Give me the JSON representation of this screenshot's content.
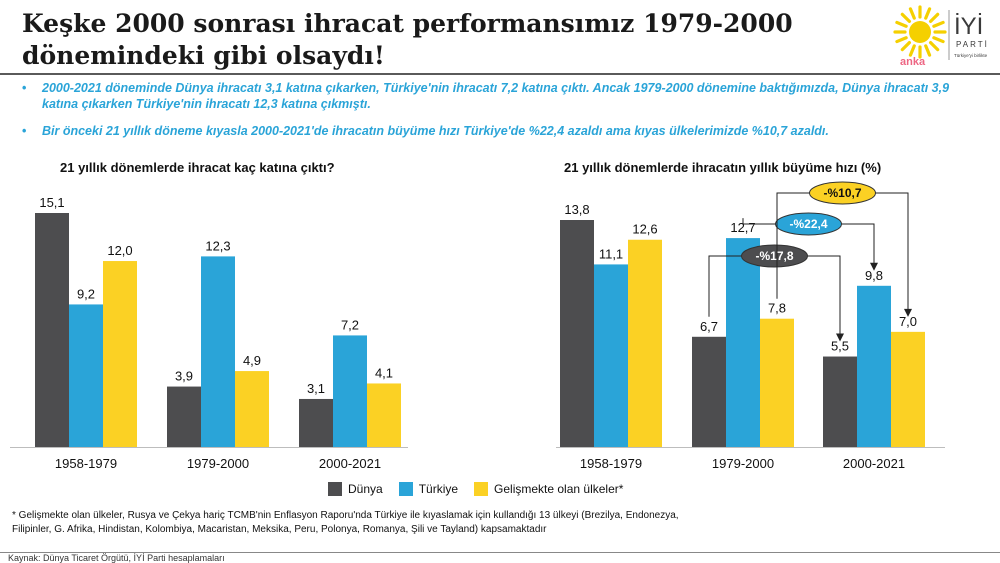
{
  "header": {
    "title": "Keşke 2000 sonrası ihracat performansımız 1979-2000 dönemindeki gibi olsaydı!"
  },
  "logo": {
    "party_main": "İYİ",
    "party_sub": "PARTİ",
    "tagline": "Türkiye'yi birlikte",
    "watermark": "anka",
    "sun_color": "#f5d000",
    "watermark_color": "#e8335a"
  },
  "bullets": [
    "2000-2021 döneminde Dünya ihracatı 3,1 katına çıkarken, Türkiye'nin ihracatı 7,2 katına çıktı. Ancak 1979-2000 dönemine baktığımızda, Dünya ihracatı 3,9 katına çıkarken Türkiye'nin ihracatı 12,3 katına çıkmıştı.",
    "Bir önceki 21 yıllık döneme kıyasla 2000-2021'de ihracatın büyüme hızı Türkiye'de %22,4 azaldı ama kıyas ülkelerimizde %10,7 azaldı."
  ],
  "colors": {
    "Dünya": "#4d4d4f",
    "Türkiye": "#2aa4d8",
    "Gelişmekte olan ülkeler": "#fbd124"
  },
  "chart_data": [
    {
      "type": "bar",
      "title": "21 yıllık dönemlerde ihracat kaç katına çıktı?",
      "categories": [
        "1958-1979",
        "1979-2000",
        "2000-2021"
      ],
      "series": [
        {
          "name": "Dünya",
          "values": [
            15.1,
            3.9,
            3.1
          ],
          "labels": [
            "15,1",
            "3,9",
            "3,1"
          ]
        },
        {
          "name": "Türkiye",
          "values": [
            9.2,
            12.3,
            7.2
          ],
          "labels": [
            "9,2",
            "12,3",
            "7,2"
          ]
        },
        {
          "name": "Gelişmekte olan ülkeler",
          "values": [
            12.0,
            4.9,
            4.1
          ],
          "labels": [
            "12,0",
            "4,9",
            "4,1"
          ]
        }
      ],
      "ylim": [
        0,
        16
      ],
      "xlabel": "",
      "ylabel": "",
      "grid": false
    },
    {
      "type": "bar",
      "title": "21 yıllık dönemlerde ihracatın yıllık büyüme hızı (%)",
      "categories": [
        "1958-1979",
        "1979-2000",
        "2000-2021"
      ],
      "series": [
        {
          "name": "Dünya",
          "values": [
            13.8,
            6.7,
            5.5
          ],
          "labels": [
            "13,8",
            "6,7",
            "5,5"
          ]
        },
        {
          "name": "Türkiye",
          "values": [
            11.1,
            12.7,
            9.8
          ],
          "labels": [
            "11,1",
            "12,7",
            "9,8"
          ]
        },
        {
          "name": "Gelişmekte olan ülkeler",
          "values": [
            12.6,
            7.8,
            7.0
          ],
          "labels": [
            "12,6",
            "7,8",
            "7,0"
          ]
        }
      ],
      "ylim": [
        0,
        17.4
      ],
      "xlabel": "",
      "ylabel": "",
      "grid": false,
      "annotations": [
        {
          "label": "-%17,8",
          "series": "Dünya",
          "from_category": "1979-2000",
          "to_category": "2000-2021",
          "color": "#4d4d4f",
          "text_color": "#ffffff"
        },
        {
          "label": "-%22,4",
          "series": "Türkiye",
          "from_category": "1979-2000",
          "to_category": "2000-2021",
          "color": "#2aa4d8",
          "text_color": "#ffffff"
        },
        {
          "label": "-%10,7",
          "series": "Gelişmekte olan ülkeler",
          "from_category": "1979-2000",
          "to_category": "2000-2021",
          "color": "#fbd124",
          "text_color": "#111111"
        }
      ]
    }
  ],
  "legend": {
    "placement": "bottom-center",
    "items": [
      "Dünya",
      "Türkiye",
      "Gelişmekte olan ülkeler*"
    ]
  },
  "footnote": "* Gelişmekte olan ülkeler, Rusya ve Çekya hariç TCMB'nin Enflasyon Raporu'nda Türkiye ile kıyaslamak için kullandığı 13 ülkeyi (Brezilya, Endonezya, Filipinler, G. Afrika, Hindistan, Kolombiya, Macaristan, Meksika, Peru, Polonya, Romanya, Şili ve Tayland) kapsamaktadır",
  "source": "Kaynak: Dünya Ticaret Örgütü, İYİ Parti hesaplamaları"
}
